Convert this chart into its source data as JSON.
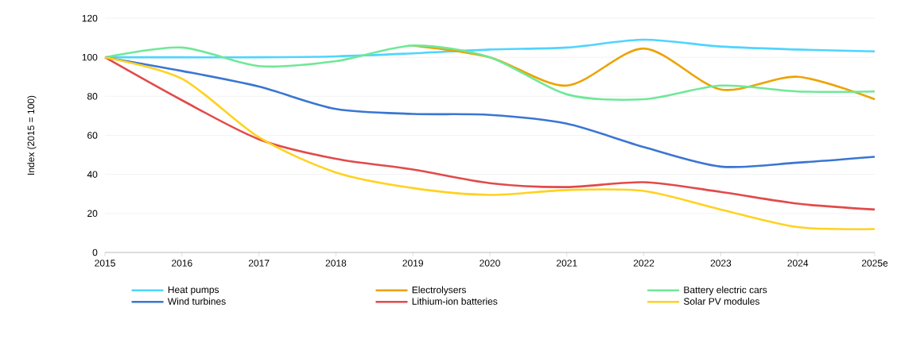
{
  "chart_data": {
    "type": "line",
    "ylabel": "Index (2015 = 100)",
    "categories": [
      "2015",
      "2016",
      "2017",
      "2018",
      "2019",
      "2020",
      "2021",
      "2022",
      "2023",
      "2024",
      "2025e"
    ],
    "ylim": [
      0,
      120
    ],
    "yticks": [
      0,
      20,
      40,
      60,
      80,
      100,
      120
    ],
    "grid": "y",
    "legend": "bottom",
    "marker": "none",
    "line_style": "solid",
    "series": [
      {
        "name": "Heat pumps",
        "color": "#4fd4ff",
        "values": [
          100,
          100,
          100,
          100.5,
          102,
          104,
          105,
          109,
          105.5,
          104,
          103
        ]
      },
      {
        "name": "Electrolysers",
        "color": "#eba300",
        "values": [
          null,
          null,
          null,
          null,
          106,
          100,
          85.5,
          104.5,
          83.5,
          90,
          78.5
        ]
      },
      {
        "name": "Battery electric cars",
        "color": "#6fe897",
        "values": [
          100,
          105,
          95.5,
          98,
          106,
          100,
          81,
          78.5,
          85.5,
          82.5,
          82.5
        ]
      },
      {
        "name": "Wind turbines",
        "color": "#3a76d2",
        "values": [
          100,
          93,
          85,
          73.5,
          71,
          70.5,
          66,
          54,
          44,
          46,
          49
        ]
      },
      {
        "name": "Lithium-ion batteries",
        "color": "#e24a4a",
        "values": [
          100,
          78,
          58,
          48,
          42.5,
          35.5,
          33.5,
          36,
          31,
          25,
          22
        ]
      },
      {
        "name": "Solar PV modules",
        "color": "#ffd21f",
        "values": [
          100,
          89,
          59,
          41,
          33,
          29.5,
          32,
          31.5,
          22,
          13,
          12
        ]
      }
    ]
  }
}
